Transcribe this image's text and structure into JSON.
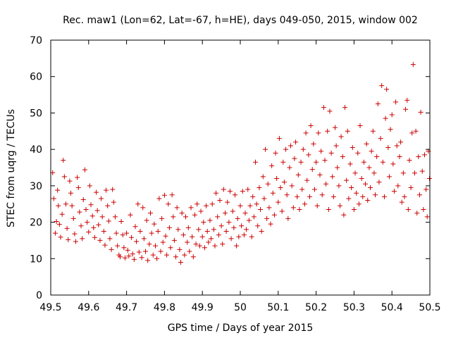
{
  "chart_data": {
    "type": "scatter",
    "title": "Rec. maw1 (Lon=62, Lat=-67, h=HE), days 049-050, 2015, window 002",
    "xlabel": "GPS time / Days of year 2015",
    "ylabel": "STEC from uqrg / TECUs",
    "xlim": [
      49.5,
      50.5
    ],
    "ylim": [
      0,
      70
    ],
    "xticks": [
      "49.5",
      "49.6",
      "49.7",
      "49.8",
      "49.9",
      "50",
      "50.1",
      "50.2",
      "50.3",
      "50.4",
      "50.5"
    ],
    "yticks": [
      "0",
      "10",
      "20",
      "30",
      "40",
      "50",
      "60",
      "70"
    ],
    "grid": false,
    "marker": "plus",
    "color": "#cc0000",
    "series": [
      {
        "points": [
          [
            49.505,
            33.6
          ],
          [
            49.508,
            26.5
          ],
          [
            49.512,
            17.0
          ],
          [
            49.515,
            20.2
          ],
          [
            49.518,
            28.8
          ],
          [
            49.52,
            24.5
          ],
          [
            49.523,
            19.4
          ],
          [
            49.526,
            15.9
          ],
          [
            49.53,
            22.2
          ],
          [
            49.533,
            37.0
          ],
          [
            49.536,
            32.5
          ],
          [
            49.54,
            25.0
          ],
          [
            49.543,
            18.3
          ],
          [
            49.546,
            15.2
          ],
          [
            49.55,
            31.3
          ],
          [
            49.553,
            28.0
          ],
          [
            49.556,
            24.5
          ],
          [
            49.56,
            21.0
          ],
          [
            49.563,
            16.8
          ],
          [
            49.566,
            14.7
          ],
          [
            49.57,
            32.3
          ],
          [
            49.573,
            29.5
          ],
          [
            49.576,
            22.8
          ],
          [
            49.58,
            19.0
          ],
          [
            49.583,
            15.5
          ],
          [
            49.586,
            26.2
          ],
          [
            49.59,
            34.4
          ],
          [
            49.593,
            23.5
          ],
          [
            49.596,
            20.0
          ],
          [
            49.6,
            17.3
          ],
          [
            49.603,
            30.0
          ],
          [
            49.606,
            24.8
          ],
          [
            49.61,
            21.7
          ],
          [
            49.613,
            18.5
          ],
          [
            49.616,
            15.8
          ],
          [
            49.62,
            28.2
          ],
          [
            49.623,
            23.2
          ],
          [
            49.626,
            19.3
          ],
          [
            49.63,
            15.0
          ],
          [
            49.633,
            26.5
          ],
          [
            49.636,
            21.5
          ],
          [
            49.64,
            17.5
          ],
          [
            49.643,
            13.7
          ],
          [
            49.646,
            28.8
          ],
          [
            49.65,
            24.5
          ],
          [
            49.653,
            20.3
          ],
          [
            49.656,
            15.5
          ],
          [
            49.66,
            12.5
          ],
          [
            49.663,
            29.0
          ],
          [
            49.666,
            25.5
          ],
          [
            49.67,
            21.5
          ],
          [
            49.673,
            17.0
          ],
          [
            49.676,
            13.5
          ],
          [
            49.68,
            11.0
          ],
          [
            49.683,
            10.5
          ],
          [
            49.686,
            20.2
          ],
          [
            49.69,
            16.5
          ],
          [
            49.693,
            13.0
          ],
          [
            49.696,
            10.2
          ],
          [
            49.7,
            17.0
          ],
          [
            49.703,
            12.3
          ],
          [
            49.706,
            10.7
          ],
          [
            49.71,
            22.0
          ],
          [
            49.713,
            15.8
          ],
          [
            49.716,
            11.3
          ],
          [
            49.72,
            9.8
          ],
          [
            49.723,
            18.8
          ],
          [
            49.726,
            14.7
          ],
          [
            49.73,
            25.0
          ],
          [
            49.733,
            11.8
          ],
          [
            49.736,
            17.5
          ],
          [
            49.74,
            10.3
          ],
          [
            49.743,
            24.0
          ],
          [
            49.746,
            15.5
          ],
          [
            49.75,
            12.0
          ],
          [
            49.753,
            20.5
          ],
          [
            49.756,
            9.5
          ],
          [
            49.76,
            14.0
          ],
          [
            49.763,
            22.5
          ],
          [
            49.766,
            17.0
          ],
          [
            49.77,
            11.0
          ],
          [
            49.773,
            19.5
          ],
          [
            49.776,
            13.5
          ],
          [
            49.78,
            10.0
          ],
          [
            49.783,
            17.5
          ],
          [
            49.786,
            26.5
          ],
          [
            49.79,
            12.0
          ],
          [
            49.793,
            21.0
          ],
          [
            49.796,
            14.5
          ],
          [
            49.8,
            27.4
          ],
          [
            49.803,
            16.2
          ],
          [
            49.806,
            11.0
          ],
          [
            49.81,
            25.0
          ],
          [
            49.813,
            18.5
          ],
          [
            49.816,
            13.0
          ],
          [
            49.82,
            27.5
          ],
          [
            49.823,
            21.5
          ],
          [
            49.826,
            15.0
          ],
          [
            49.83,
            10.5
          ],
          [
            49.833,
            24.0
          ],
          [
            49.836,
            18.0
          ],
          [
            49.84,
            12.5
          ],
          [
            49.843,
            9.0
          ],
          [
            49.846,
            22.5
          ],
          [
            49.85,
            16.5
          ],
          [
            49.853,
            11.0
          ],
          [
            49.856,
            21.5
          ],
          [
            49.86,
            14.5
          ],
          [
            49.863,
            18.5
          ],
          [
            49.866,
            12.0
          ],
          [
            49.87,
            24.0
          ],
          [
            49.873,
            16.0
          ],
          [
            49.876,
            10.5
          ],
          [
            49.88,
            22.0
          ],
          [
            49.883,
            14.0
          ],
          [
            49.886,
            25.0
          ],
          [
            49.89,
            18.0
          ],
          [
            49.893,
            13.5
          ],
          [
            49.896,
            23.0
          ],
          [
            49.9,
            16.0
          ],
          [
            49.903,
            20.0
          ],
          [
            49.906,
            13.0
          ],
          [
            49.91,
            24.5
          ],
          [
            49.913,
            17.5
          ],
          [
            49.916,
            14.5
          ],
          [
            49.92,
            20.5
          ],
          [
            49.923,
            15.5
          ],
          [
            49.926,
            25.0
          ],
          [
            49.93,
            18.0
          ],
          [
            49.933,
            13.5
          ],
          [
            49.936,
            28.0
          ],
          [
            49.94,
            21.5
          ],
          [
            49.943,
            16.5
          ],
          [
            49.946,
            26.0
          ],
          [
            49.95,
            19.0
          ],
          [
            49.953,
            14.0
          ],
          [
            49.956,
            29.0
          ],
          [
            49.96,
            22.5
          ],
          [
            49.963,
            17.5
          ],
          [
            49.966,
            25.5
          ],
          [
            49.97,
            20.0
          ],
          [
            49.973,
            28.5
          ],
          [
            49.976,
            15.5
          ],
          [
            49.98,
            23.0
          ],
          [
            49.983,
            18.5
          ],
          [
            49.986,
            27.5
          ],
          [
            49.99,
            13.5
          ],
          [
            49.993,
            21.0
          ],
          [
            49.996,
            16.0
          ],
          [
            50.0,
            24.5
          ],
          [
            50.003,
            19.0
          ],
          [
            50.006,
            28.5
          ],
          [
            50.01,
            16.5
          ],
          [
            50.013,
            22.5
          ],
          [
            50.016,
            18.0
          ],
          [
            50.02,
            29.0
          ],
          [
            50.023,
            20.5
          ],
          [
            50.026,
            24.5
          ],
          [
            50.03,
            16.0
          ],
          [
            50.033,
            27.0
          ],
          [
            50.036,
            21.5
          ],
          [
            50.04,
            36.5
          ],
          [
            50.043,
            25.0
          ],
          [
            50.046,
            19.0
          ],
          [
            50.05,
            29.5
          ],
          [
            50.053,
            23.5
          ],
          [
            50.056,
            17.5
          ],
          [
            50.06,
            32.5
          ],
          [
            50.063,
            26.5
          ],
          [
            50.066,
            40.0
          ],
          [
            50.07,
            21.0
          ],
          [
            50.073,
            30.5
          ],
          [
            50.076,
            24.0
          ],
          [
            50.08,
            19.5
          ],
          [
            50.083,
            35.5
          ],
          [
            50.086,
            28.0
          ],
          [
            50.09,
            22.0
          ],
          [
            50.093,
            39.0
          ],
          [
            50.096,
            32.0
          ],
          [
            50.1,
            25.5
          ],
          [
            50.103,
            43.0
          ],
          [
            50.106,
            29.5
          ],
          [
            50.11,
            23.0
          ],
          [
            50.113,
            36.5
          ],
          [
            50.116,
            31.0
          ],
          [
            50.12,
            40.0
          ],
          [
            50.123,
            27.5
          ],
          [
            50.126,
            21.0
          ],
          [
            50.13,
            35.0
          ],
          [
            50.133,
            41.0
          ],
          [
            50.136,
            30.0
          ],
          [
            50.14,
            24.0
          ],
          [
            50.143,
            37.5
          ],
          [
            50.146,
            42.0
          ],
          [
            50.15,
            27.0
          ],
          [
            50.153,
            33.0
          ],
          [
            50.156,
            23.5
          ],
          [
            50.16,
            36.5
          ],
          [
            50.163,
            29.0
          ],
          [
            50.166,
            40.0
          ],
          [
            50.17,
            25.0
          ],
          [
            50.173,
            44.5
          ],
          [
            50.176,
            31.5
          ],
          [
            50.18,
            38.5
          ],
          [
            50.183,
            27.0
          ],
          [
            50.186,
            46.5
          ],
          [
            50.19,
            34.5
          ],
          [
            50.193,
            41.5
          ],
          [
            50.196,
            29.0
          ],
          [
            50.2,
            36.5
          ],
          [
            50.203,
            24.5
          ],
          [
            50.206,
            44.5
          ],
          [
            50.21,
            33.0
          ],
          [
            50.213,
            39.5
          ],
          [
            50.216,
            27.5
          ],
          [
            50.22,
            51.5
          ],
          [
            50.223,
            37.0
          ],
          [
            50.226,
            30.5
          ],
          [
            50.23,
            45.0
          ],
          [
            50.233,
            23.5
          ],
          [
            50.236,
            50.5
          ],
          [
            50.24,
            39.0
          ],
          [
            50.243,
            32.5
          ],
          [
            50.246,
            27.0
          ],
          [
            50.25,
            46.0
          ],
          [
            50.253,
            41.0
          ],
          [
            50.256,
            35.0
          ],
          [
            50.26,
            30.0
          ],
          [
            50.263,
            24.5
          ],
          [
            50.266,
            43.5
          ],
          [
            50.27,
            38.0
          ],
          [
            50.273,
            22.0
          ],
          [
            50.276,
            51.5
          ],
          [
            50.28,
            31.5
          ],
          [
            50.283,
            45.0
          ],
          [
            50.286,
            26.5
          ],
          [
            50.29,
            36.0
          ],
          [
            50.293,
            29.5
          ],
          [
            50.296,
            40.5
          ],
          [
            50.3,
            23.5
          ],
          [
            50.303,
            33.5
          ],
          [
            50.306,
            28.0
          ],
          [
            50.31,
            39.0
          ],
          [
            50.313,
            25.0
          ],
          [
            50.316,
            46.5
          ],
          [
            50.32,
            32.0
          ],
          [
            50.323,
            27.0
          ],
          [
            50.326,
            36.5
          ],
          [
            50.33,
            30.5
          ],
          [
            50.333,
            41.5
          ],
          [
            50.336,
            26.0
          ],
          [
            50.34,
            35.0
          ],
          [
            50.343,
            29.5
          ],
          [
            50.346,
            39.5
          ],
          [
            50.35,
            45.0
          ],
          [
            50.353,
            33.5
          ],
          [
            50.356,
            27.5
          ],
          [
            50.36,
            38.0
          ],
          [
            50.363,
            52.5
          ],
          [
            50.366,
            31.0
          ],
          [
            50.37,
            43.0
          ],
          [
            50.373,
            57.5
          ],
          [
            50.376,
            36.5
          ],
          [
            50.38,
            27.0
          ],
          [
            50.383,
            48.5
          ],
          [
            50.386,
            56.5
          ],
          [
            50.39,
            40.5
          ],
          [
            50.393,
            32.5
          ],
          [
            50.396,
            45.5
          ],
          [
            50.4,
            49.5
          ],
          [
            50.403,
            36.0
          ],
          [
            50.406,
            28.5
          ],
          [
            50.41,
            53.0
          ],
          [
            50.413,
            41.0
          ],
          [
            50.416,
            30.0
          ],
          [
            50.42,
            38.0
          ],
          [
            50.423,
            42.0
          ],
          [
            50.426,
            25.5
          ],
          [
            50.43,
            33.5
          ],
          [
            50.433,
            27.0
          ],
          [
            50.436,
            51.0
          ],
          [
            50.44,
            53.5
          ],
          [
            50.443,
            23.5
          ],
          [
            50.446,
            37.0
          ],
          [
            50.45,
            29.5
          ],
          [
            50.453,
            44.5
          ],
          [
            50.456,
            63.3
          ],
          [
            50.46,
            33.5
          ],
          [
            50.463,
            45.0
          ],
          [
            50.466,
            22.5
          ],
          [
            50.47,
            38.0
          ],
          [
            50.473,
            27.5
          ],
          [
            50.476,
            50.2
          ],
          [
            50.48,
            34.0
          ],
          [
            50.483,
            23.5
          ],
          [
            50.486,
            38.5
          ],
          [
            50.49,
            29.0
          ],
          [
            50.493,
            21.5
          ],
          [
            50.496,
            39.5
          ],
          [
            50.499,
            32.0
          ]
        ]
      }
    ]
  }
}
